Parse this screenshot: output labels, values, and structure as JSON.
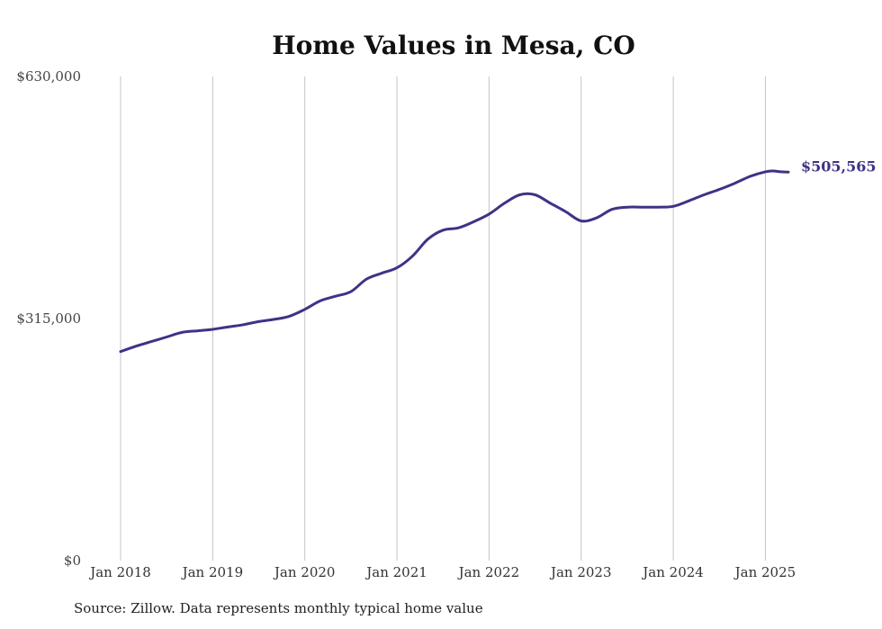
{
  "chart_data": {
    "type": "line",
    "title": "Home Values in Mesa, CO",
    "xlabel": "",
    "ylabel": "",
    "source_note": "Source: Zillow. Data represents monthly typical home value",
    "ylim": [
      0,
      630000
    ],
    "y_ticks": [
      {
        "value": 0,
        "label": "$0"
      },
      {
        "value": 315000,
        "label": "$315,000"
      },
      {
        "value": 630000,
        "label": "$630,000"
      }
    ],
    "x_ticks": [
      {
        "value": "2018-01",
        "label": "Jan 2018"
      },
      {
        "value": "2019-01",
        "label": "Jan 2019"
      },
      {
        "value": "2020-01",
        "label": "Jan 2020"
      },
      {
        "value": "2021-01",
        "label": "Jan 2021"
      },
      {
        "value": "2022-01",
        "label": "Jan 2022"
      },
      {
        "value": "2023-01",
        "label": "Jan 2023"
      },
      {
        "value": "2024-01",
        "label": "Jan 2024"
      },
      {
        "value": "2025-01",
        "label": "Jan 2025"
      }
    ],
    "xlim": [
      "2018-01",
      "2025-04"
    ],
    "vertical_grid": true,
    "horizontal_grid": false,
    "line_color": "#3d3386",
    "end_label": "$505,565",
    "series": [
      {
        "x": [
          "2018-01",
          "2018-03",
          "2018-05",
          "2018-07",
          "2018-09",
          "2018-11",
          "2019-01",
          "2019-03",
          "2019-05",
          "2019-07",
          "2019-09",
          "2019-11",
          "2020-01",
          "2020-03",
          "2020-05",
          "2020-07",
          "2020-09",
          "2020-11",
          "2021-01",
          "2021-03",
          "2021-05",
          "2021-07",
          "2021-09",
          "2021-11",
          "2022-01",
          "2022-03",
          "2022-05",
          "2022-07",
          "2022-09",
          "2022-11",
          "2023-01",
          "2023-03",
          "2023-05",
          "2023-07",
          "2023-09",
          "2023-11",
          "2024-01",
          "2024-03",
          "2024-05",
          "2024-07",
          "2024-09",
          "2024-11",
          "2025-01",
          "2025-02",
          "2025-03",
          "2025-04"
        ],
        "y": [
          272000,
          279000,
          285000,
          291000,
          297000,
          299000,
          301000,
          304000,
          307000,
          311000,
          314000,
          318000,
          327000,
          338000,
          344000,
          350000,
          366000,
          374000,
          381000,
          396000,
          418000,
          430000,
          433000,
          441000,
          451000,
          465000,
          476000,
          476000,
          465000,
          454000,
          442000,
          446000,
          457000,
          460000,
          460000,
          460000,
          461000,
          468000,
          476000,
          483000,
          491000,
          500000,
          506000,
          507000,
          506000,
          505565
        ]
      }
    ]
  }
}
